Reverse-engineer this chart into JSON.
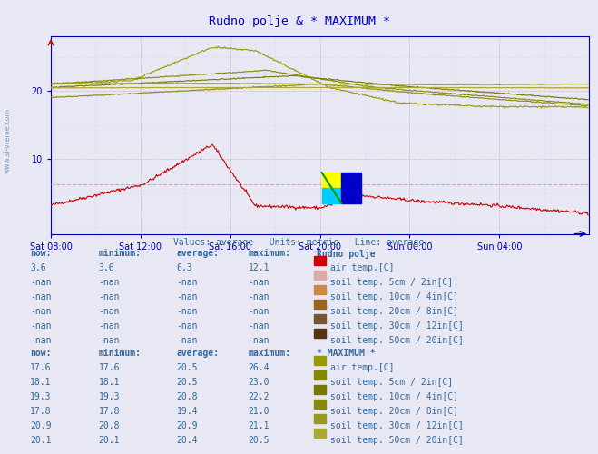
{
  "title": "Rudno polje & * MAXIMUM *",
  "title_color": "#0000cc",
  "bg_color": "#e8e8f4",
  "plot_bg_color": "#e8e8f4",
  "x_tick_labels": [
    "Sat 08:00",
    "Sat 12:00",
    "Sat 16:00",
    "Sat 20:00",
    "Sun 00:00",
    "Sun 04:00"
  ],
  "x_tick_positions": [
    0,
    96,
    192,
    288,
    384,
    480
  ],
  "y_ticks": [
    10,
    20
  ],
  "y_lim": [
    -1,
    28
  ],
  "x_lim": [
    0,
    576
  ],
  "subtitle_line3": "Values: average   Units: metric   Line: average",
  "subtitle_color": "#336699",
  "watermark": "www.si-vreme.com",
  "grid_color_major": "#cc99aa",
  "grid_color_minor": "#ddccdd",
  "axis_color": "#0000aa",
  "rudno_polje_label": "Rudno polje",
  "maximum_label": "* MAXIMUM *",
  "table_header_color": "#336699",
  "table_val_color": "#336699",
  "color_air_temp_rudno": "#cc0000",
  "color_soil_5_rudno": "#ddaaaa",
  "color_soil_10_rudno": "#cc8844",
  "color_soil_20_rudno": "#996622",
  "color_soil_30_rudno": "#775533",
  "color_soil_50_rudno": "#553311",
  "color_air_temp_max": "#999900",
  "color_soil_5_max": "#888800",
  "color_soil_10_max": "#777700",
  "color_soil_20_max": "#888811",
  "color_soil_30_max": "#999922",
  "color_soil_50_max": "#aaaa33",
  "n_points": 576,
  "dashed_avg_color": "#ff9999",
  "avg_line_rudno": 6.3,
  "avg_line_max_air": 20.5,
  "logo_yellow": "#ffff00",
  "logo_cyan": "#00ccff",
  "logo_blue": "#0000cc",
  "logo_green": "#009900"
}
